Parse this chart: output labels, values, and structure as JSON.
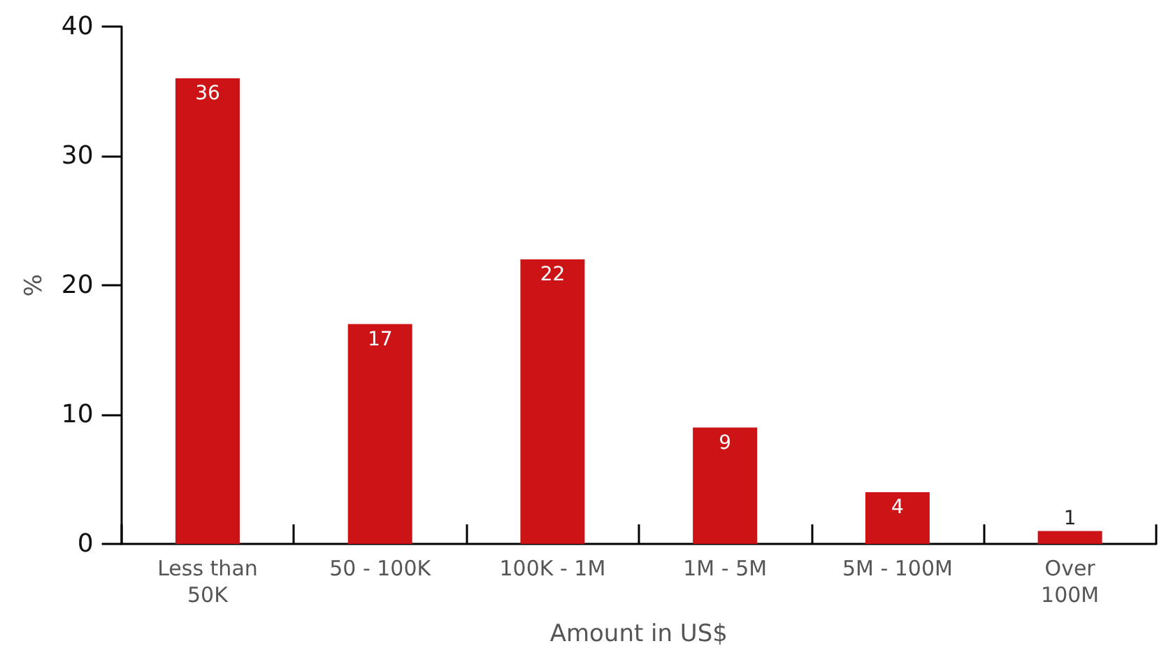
{
  "chart_data": {
    "type": "bar",
    "xlabel": "Amount in US$",
    "ylabel": "%",
    "categories": [
      "Less than\n50K",
      "50 - 100K",
      "100K - 1M",
      "1M - 5M",
      "5M - 100M",
      "Over\n100M"
    ],
    "values": [
      36,
      17,
      22,
      9,
      4,
      1
    ],
    "color": "#cc1417",
    "ylim": [
      0,
      40
    ],
    "yticks": [
      0,
      10,
      20,
      30,
      40
    ],
    "grid": false,
    "data_labels": true
  }
}
